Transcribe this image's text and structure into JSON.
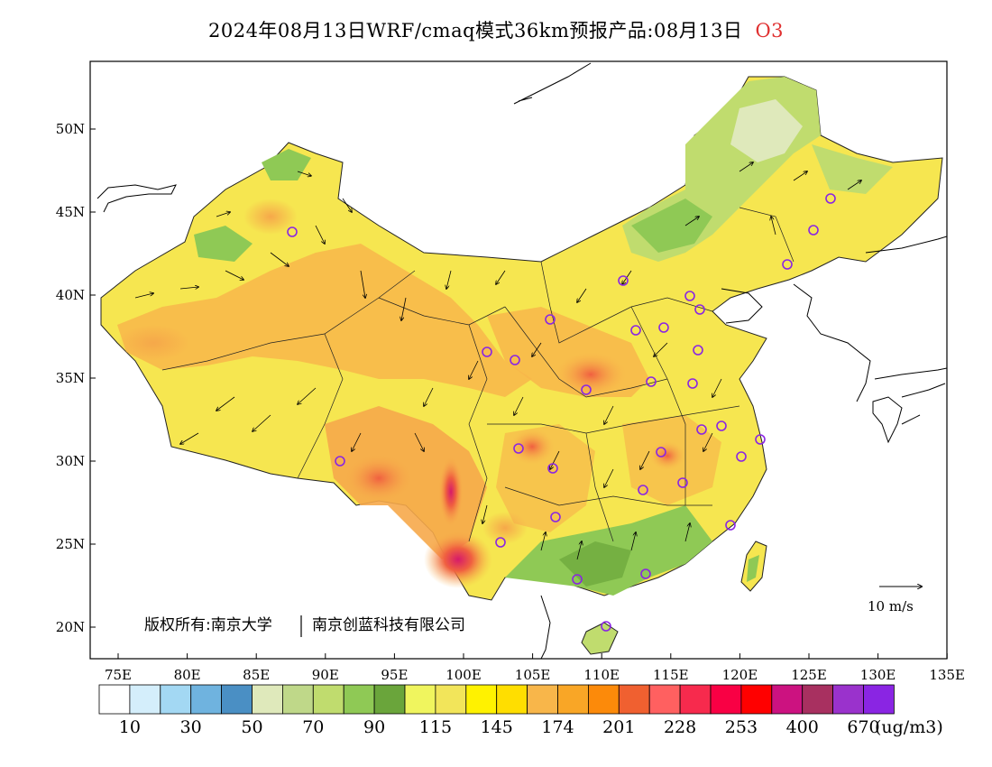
{
  "title": {
    "main": "2024年08月13日WRF/cmaq模式36km预报产品:08月13日",
    "species": "O3"
  },
  "map": {
    "lon_ticks": [
      "75E",
      "80E",
      "85E",
      "90E",
      "95E",
      "100E",
      "105E",
      "110E",
      "115E",
      "120E",
      "125E",
      "130E",
      "135E"
    ],
    "lat_ticks": [
      "50N",
      "45N",
      "40N",
      "35N",
      "30N",
      "25N",
      "20N"
    ],
    "wind_reference": "10 m/s",
    "copyright": "版权所有:南京大学",
    "copyright_org": "南京创蓝科技有限公司",
    "wind_vectors": "shown",
    "station_markers": "purple circles"
  },
  "colorbar": {
    "colors": [
      "#ffffff",
      "#d4eefb",
      "#a3d8f3",
      "#6fb3df",
      "#4a8fc4",
      "#dfe9bb",
      "#bfd889",
      "#c0dc6e",
      "#8fc955",
      "#6aa53b",
      "#f0f55e",
      "#f2e55a",
      "#fff200",
      "#ffde00",
      "#f8b64a",
      "#f9a626",
      "#fc8a0a",
      "#f06030",
      "#ff6060",
      "#f72a4d",
      "#f90044",
      "#ff0000",
      "#cc1280",
      "#a83060",
      "#9a32cc",
      "#8a25e3"
    ],
    "labels": [
      "10",
      "30",
      "50",
      "70",
      "90",
      "115",
      "145",
      "174",
      "201",
      "228",
      "253",
      "400",
      "670"
    ],
    "unit": "(ug/m3)"
  }
}
